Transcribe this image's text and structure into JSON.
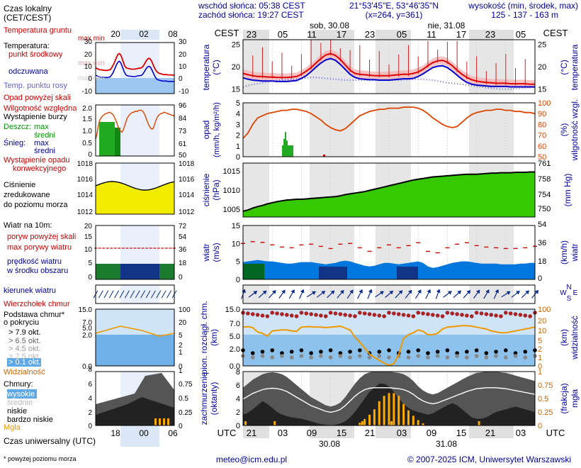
{
  "header": {
    "sunrise": "wschód słońca: 05:38 CEST",
    "sunset": "zachód słońca: 19:27 CEST",
    "coords": "21°53'45\"E, 53°46'35\"N",
    "grid": "(x=264, y=361)",
    "elev_title": "wysokość (min, środek, max)",
    "elev_values": "125 - 137 - 163 m"
  },
  "legend": {
    "time_local": "Czas lokalny",
    "time_local_sub": "(CET/CEST)",
    "ground_temp": "Temperatura gruntu",
    "ground_temp_sub": "max min",
    "temp": "Temperatura:",
    "temp_mid": "punkt środkowy",
    "temp_maxmin": "max min",
    "felt": "odczuwana",
    "felt_maxmin": "max min",
    "dew": "Temp. punktu rosy",
    "precip_over": "Opad powyżej skali",
    "humidity": "Wilgotność względna",
    "storm": "Wystąpienie burzy",
    "rain": "Deszcz:",
    "max": "max",
    "mean": "średni",
    "snow": "Śnieg:",
    "conv": "Wystąpienie opadu",
    "conv2": "konwekcyjnego",
    "pressure1": "Ciśnienie",
    "pressure2": "zredukowane",
    "pressure3": "do poziomu morza",
    "wind_at": "Wiatr na 10m:",
    "gust_over": "poryw powyżej skali",
    "gust_max": "max porywy wiatru",
    "wind_speed1": "prędkość wiatru",
    "wind_speed2": "w środku obszaru",
    "wind_dir": "kierunek wiatru",
    "cloud_top": "Wierzchołek chmur",
    "cloud_base1": "Podstawa chmur*",
    "cloud_base2": "o pokryciu",
    "okt79": "> 7.9 okt.",
    "okt65": "> 6.5 okt.",
    "okt45": "> 4.5 okt.",
    "okt25": "> 2.5 okt.",
    "okt01": "> 0.1 okt.",
    "visibility": "Widzialność",
    "clouds": "Chmury:",
    "cl_high": "wysokie",
    "cl_mid": "średnie",
    "cl_low": "niskie",
    "cl_vlow": "bardzo niskie",
    "fog": "Mgła",
    "utc": "Czas uniwersalny (UTC)",
    "footnote": "* powyżej poziomu morza"
  },
  "axes": {
    "cest": "CEST",
    "utc": "UTC",
    "day1": "sob, 30.08",
    "day2": "nie, 31.08",
    "day1_utc": "30.08",
    "day2_utc": "31.08",
    "top_hours": [
      "23",
      "05",
      "11",
      "17",
      "23",
      "05",
      "11",
      "17",
      "23",
      "05"
    ],
    "bottom_hours": [
      "21",
      "03",
      "09",
      "15",
      "21",
      "03",
      "09",
      "15",
      "21",
      "03"
    ],
    "mini_top_hours": [
      "20",
      "02",
      "08"
    ],
    "mini_bottom_hours": [
      "18",
      "00",
      "06"
    ],
    "temp_label": "temperatura",
    "temp_unit": "(°C)",
    "precip_label": "opad",
    "precip_unit": "(mm/h, kg/m²/h)",
    "hum_label": "wilgotność wzgl.",
    "hum_unit": "(%)",
    "press_label": "ciśnienie",
    "press_unit": "(hPa)",
    "press_unit2": "(mm Hg)",
    "wind_label": "wiatr",
    "wind_unit": "(m/s)",
    "wind_unit2": "(km/h)",
    "cloud_label": "pion. rozciągł. chm.",
    "cloud_unit": "(km)",
    "vis_label": "widzialność",
    "vis_unit": "(km)",
    "cover_label": "zachmurzenie",
    "cover_unit": "(oktanty)",
    "fog_label": "(frakcja)",
    "fog_label2": "mgła"
  },
  "footer": {
    "email": "meteo@icm.edu.pl",
    "copyright": "© 2007-2025 ICM, Uniwersytet Warszawski"
  },
  "colors": {
    "temp": "#dd0000",
    "felt": "#0000cc",
    "dew": "#6666dd",
    "humidity": "#dd4400",
    "rain": "#22aa22",
    "pressure": "#33cc00",
    "wind": "#0077dd",
    "gust": "#cc0000",
    "visibility": "#ee9900",
    "fog": "#ffaa00",
    "left_label": "#cc0000",
    "right_label": "#000099"
  },
  "chart_data": {
    "type": "line",
    "x_hours_utc": [
      18,
      19,
      20,
      21,
      22,
      23,
      0,
      1,
      2,
      3,
      4,
      5,
      6,
      7,
      8,
      9,
      10,
      11,
      12,
      13,
      14,
      15,
      16,
      17,
      18,
      19,
      20,
      21,
      22,
      23,
      0,
      1,
      2,
      3,
      4,
      5,
      6,
      7,
      8,
      9,
      10,
      11,
      12,
      13,
      14,
      15,
      16,
      17,
      18,
      19,
      20,
      21,
      22,
      23,
      0,
      1,
      2,
      3,
      4,
      5,
      6
    ],
    "temperature": {
      "ylim": [
        14,
        26
      ],
      "ticks": [
        15,
        20,
        25
      ],
      "series": [
        {
          "name": "punkt środkowy",
          "values": [
            18.5,
            18.2,
            18.0,
            17.8,
            17.8,
            17.7,
            17.7,
            17.6,
            17.6,
            17.6,
            17.7,
            17.8,
            18.3,
            19.0,
            19.8,
            20.8,
            21.8,
            22.6,
            22.9,
            22.5,
            21.6,
            20.4,
            19.2,
            18.5,
            18.3,
            18.2,
            18.1,
            18.0,
            18.0,
            18.0,
            18.0,
            18.1,
            18.2,
            18.3,
            18.3,
            18.5,
            18.8,
            19.4,
            20.2,
            20.9,
            21.3,
            21.4,
            21.0,
            20.2,
            19.2,
            18.3,
            17.6,
            17.1,
            16.8,
            16.6,
            16.5,
            16.4,
            16.3,
            16.3,
            16.3,
            16.2,
            16.2,
            16.2,
            16.2,
            16.1,
            16.1
          ]
        },
        {
          "name": "odczuwana",
          "values": [
            17.5,
            17.2,
            17.0,
            16.9,
            16.8,
            16.8,
            16.8,
            16.7,
            16.7,
            16.7,
            16.8,
            16.9,
            17.4,
            18.0,
            18.9,
            19.9,
            20.8,
            21.5,
            21.8,
            21.4,
            20.5,
            19.4,
            18.3,
            17.6,
            17.3,
            17.2,
            17.1,
            17.1,
            17.0,
            17.0,
            17.0,
            17.1,
            17.2,
            17.3,
            17.3,
            17.4,
            17.8,
            18.4,
            19.1,
            19.8,
            20.1,
            20.2,
            19.8,
            19.0,
            18.1,
            17.2,
            16.5,
            16.1,
            15.9,
            15.8,
            15.7,
            15.6,
            15.6,
            15.6,
            15.6,
            15.5,
            15.5,
            15.5,
            15.5,
            15.5,
            15.5
          ]
        },
        {
          "name": "Temp. punktu rosy",
          "values": [
            15.5,
            15.8,
            16.0,
            16.2,
            16.4,
            16.6,
            16.8,
            16.9,
            17.0,
            17.1,
            17.2,
            17.2,
            17.3,
            17.5,
            17.6,
            17.6,
            17.5,
            17.4,
            17.3,
            17.2,
            17.1,
            17.0,
            17.0,
            17.0,
            17.0,
            17.0,
            17.0,
            17.0,
            17.0,
            17.0,
            17.0,
            17.0,
            17.0,
            17.1,
            17.1,
            17.2,
            17.2,
            17.2,
            17.1,
            17.0,
            16.8,
            16.6,
            16.4,
            16.3,
            16.2,
            16.1,
            15.9,
            15.8,
            15.6,
            15.5,
            15.3,
            15.2,
            15.1,
            15.0,
            15.0,
            15.0,
            15.1,
            15.2,
            15.3,
            15.4,
            15.5
          ]
        }
      ]
    },
    "humidity": {
      "ylim": [
        50,
        100
      ],
      "ticks": [
        50,
        60,
        70,
        80,
        90,
        100
      ],
      "values": [
        67,
        72,
        80,
        86,
        88,
        90,
        91,
        92,
        93,
        93,
        94,
        94,
        93,
        92,
        90,
        87,
        84,
        80,
        77,
        75,
        74,
        76,
        80,
        84,
        88,
        90,
        92,
        93,
        94,
        94,
        95,
        95,
        95,
        96,
        96,
        96,
        95,
        93,
        90,
        86,
        83,
        80,
        78,
        77,
        78,
        82,
        86,
        89,
        91,
        92,
        93,
        93,
        94,
        94,
        93,
        93,
        92,
        92,
        91,
        91,
        90
      ]
    },
    "precipitation": {
      "ylim": [
        0,
        5
      ],
      "ticks": [
        0,
        1,
        2,
        3,
        4,
        5
      ],
      "values": [
        0,
        0,
        0,
        0,
        0,
        0,
        0,
        0,
        0,
        0,
        0,
        0,
        0,
        0,
        0,
        0,
        0,
        0,
        0,
        0,
        0,
        0,
        0,
        0,
        0,
        0,
        0,
        0,
        0,
        0,
        0,
        0,
        0,
        0,
        0,
        0,
        0,
        0,
        0,
        0,
        0,
        0,
        0,
        0,
        0,
        0,
        0,
        0,
        0,
        0,
        0,
        0,
        0,
        0,
        0,
        0,
        0,
        0,
        0,
        0,
        0
      ]
    },
    "pressure": {
      "ylim": [
        1003,
        1017
      ],
      "ticks": [
        1005,
        1010,
        1015
      ],
      "values": [
        1004.5,
        1004.8,
        1005.3,
        1005.7,
        1006.0,
        1006.4,
        1006.7,
        1007.0,
        1007.2,
        1007.4,
        1007.5,
        1007.6,
        1007.6,
        1007.7,
        1007.8,
        1007.9,
        1008.0,
        1008.1,
        1008.2,
        1008.3,
        1008.5,
        1008.8,
        1009.0,
        1009.2,
        1009.4,
        1009.6,
        1009.9,
        1010.2,
        1010.5,
        1010.8,
        1011.1,
        1011.4,
        1011.7,
        1012.0,
        1012.3,
        1012.6,
        1012.8,
        1013.0,
        1013.2,
        1013.4,
        1013.5,
        1013.6,
        1013.7,
        1013.8,
        1013.9,
        1014.0,
        1014.1,
        1014.1,
        1014.1,
        1014.2,
        1014.3,
        1014.4,
        1014.4,
        1014.5,
        1014.5,
        1014.5,
        1014.6,
        1014.6,
        1014.6,
        1014.7,
        1014.7
      ]
    },
    "wind": {
      "ylim": [
        0,
        15
      ],
      "ticks": [
        0,
        5,
        10,
        15
      ],
      "speed": [
        4.8,
        5.0,
        5.2,
        5.4,
        5.2,
        5.0,
        5.0,
        4.8,
        4.6,
        4.4,
        4.4,
        4.6,
        4.8,
        4.8,
        4.8,
        4.6,
        4.4,
        4.2,
        4.4,
        4.6,
        5.0,
        5.2,
        5.0,
        4.6,
        4.2,
        3.8,
        3.6,
        3.8,
        4.2,
        4.6,
        4.6,
        4.4,
        4.2,
        4.4,
        4.6,
        4.8,
        5.0,
        4.6,
        3.6,
        3.2,
        3.4,
        3.8,
        4.2,
        4.6,
        4.8,
        5.0,
        5.0,
        4.8,
        4.6,
        4.4,
        4.4,
        4.4,
        4.4,
        4.2,
        4.2,
        4.2,
        4.2,
        4.4,
        4.4,
        4.6,
        4.6
      ],
      "gust": [
        10.0,
        10.2,
        10.5,
        10.8,
        10.3,
        9.8,
        9.6,
        9.3,
        9.0,
        8.8,
        8.8,
        9.2,
        9.6,
        9.8,
        9.8,
        9.6,
        9.2,
        8.8,
        8.6,
        9.0,
        9.8,
        10.4,
        10.0,
        9.4,
        8.8,
        8.2,
        7.8,
        8.2,
        8.8,
        9.4,
        9.6,
        9.2,
        8.8,
        9.0,
        9.4,
        9.8,
        10.2,
        9.6,
        7.8,
        7.0,
        7.4,
        8.2,
        8.8,
        9.4,
        9.8,
        10.2,
        10.2,
        9.8,
        9.4,
        9.0,
        9.0,
        9.0,
        8.8,
        8.6,
        8.6,
        8.6,
        8.6,
        8.8,
        8.8,
        9.0,
        9.2
      ]
    },
    "cloud_base": {
      "ylim": [
        0,
        15
      ],
      "ticks": [
        0,
        2,
        5,
        7,
        15
      ]
    },
    "visibility": {
      "ylim": [
        0,
        100
      ],
      "ticks": [
        0,
        1,
        2,
        5,
        10,
        20,
        100
      ],
      "values": [
        8.2,
        8.3,
        8.1,
        7.2,
        6.9,
        6.3,
        7.4,
        7.5,
        7.6,
        7.6,
        7.4,
        7.3,
        8.2,
        8.3,
        8.3,
        8.2,
        8.2,
        8.1,
        8.2,
        8.3,
        8.4,
        8.0,
        7.6,
        6.1,
        5.0,
        3.8,
        2.5,
        1.8,
        1.2,
        0.6,
        0.1,
        0.5,
        2.4,
        5.8,
        6.6,
        7.0,
        7.6,
        7.3,
        6.6,
        6.6,
        6.9,
        7.8,
        8.2,
        8.3,
        8.4,
        8.5,
        8.5,
        8.4,
        8.2,
        8.0,
        7.8,
        7.4,
        7.2,
        7.0,
        7.0,
        7.2,
        7.4,
        7.6,
        7.8,
        8.0,
        8.2
      ]
    },
    "cloud_cover": {
      "ylim": [
        0,
        8
      ],
      "ticks": [
        0,
        2,
        4,
        6,
        8
      ],
      "low": [
        1.6,
        1.9,
        2.4,
        3.0,
        3.6,
        3.2,
        2.6,
        2.0,
        1.6,
        1.4,
        1.2,
        1.1,
        1.0,
        0.8,
        0.6,
        0.4,
        0.2,
        0.1,
        0.0,
        0.1,
        0.3,
        0.6,
        1.2,
        2.0,
        3.0,
        4.0,
        5.0,
        5.6,
        6.2,
        6.2,
        5.8,
        5.0,
        4.0,
        3.2,
        2.6,
        2.2,
        2.0,
        1.8,
        1.6,
        1.8,
        2.2,
        2.6,
        3.0,
        3.3,
        3.0,
        2.4,
        1.8,
        1.2,
        1.0,
        1.0,
        1.2,
        1.6,
        2.0,
        2.2,
        2.4,
        2.6,
        2.8,
        2.6,
        2.4,
        2.2,
        2.0
      ],
      "total": [
        5.6,
        6.2,
        6.8,
        7.2,
        7.6,
        7.8,
        7.9,
        7.8,
        7.6,
        7.2,
        6.6,
        6.0,
        5.4,
        4.8,
        4.2,
        3.8,
        3.4,
        3.0,
        2.8,
        3.0,
        3.4,
        4.2,
        5.2,
        6.2,
        7.0,
        7.6,
        7.9,
        8.0,
        8.0,
        8.0,
        8.0,
        7.9,
        7.8,
        7.6,
        7.2,
        6.6,
        5.8,
        5.2,
        4.8,
        4.6,
        4.8,
        5.2,
        5.6,
        6.0,
        6.4,
        6.8,
        7.2,
        7.5,
        7.8,
        7.9,
        8.0,
        8.0,
        8.0,
        7.9,
        7.8,
        7.6,
        7.4,
        7.2,
        7.0,
        6.8,
        6.6
      ],
      "fog": [
        0,
        0,
        0,
        0,
        0,
        0,
        0,
        0,
        0,
        0,
        0,
        0,
        0,
        0,
        0,
        0,
        0,
        0,
        0,
        0,
        0,
        0,
        0,
        0,
        0.05,
        0.12,
        0.2,
        0.3,
        0.45,
        0.55,
        0.6,
        0.6,
        0.55,
        0.4,
        0.28,
        0.18,
        0.1,
        0.04,
        0,
        0,
        0,
        0,
        0,
        0,
        0,
        0,
        0,
        0,
        0,
        0,
        0,
        0,
        0,
        0,
        0,
        0,
        0,
        0,
        0,
        0,
        0
      ]
    }
  }
}
